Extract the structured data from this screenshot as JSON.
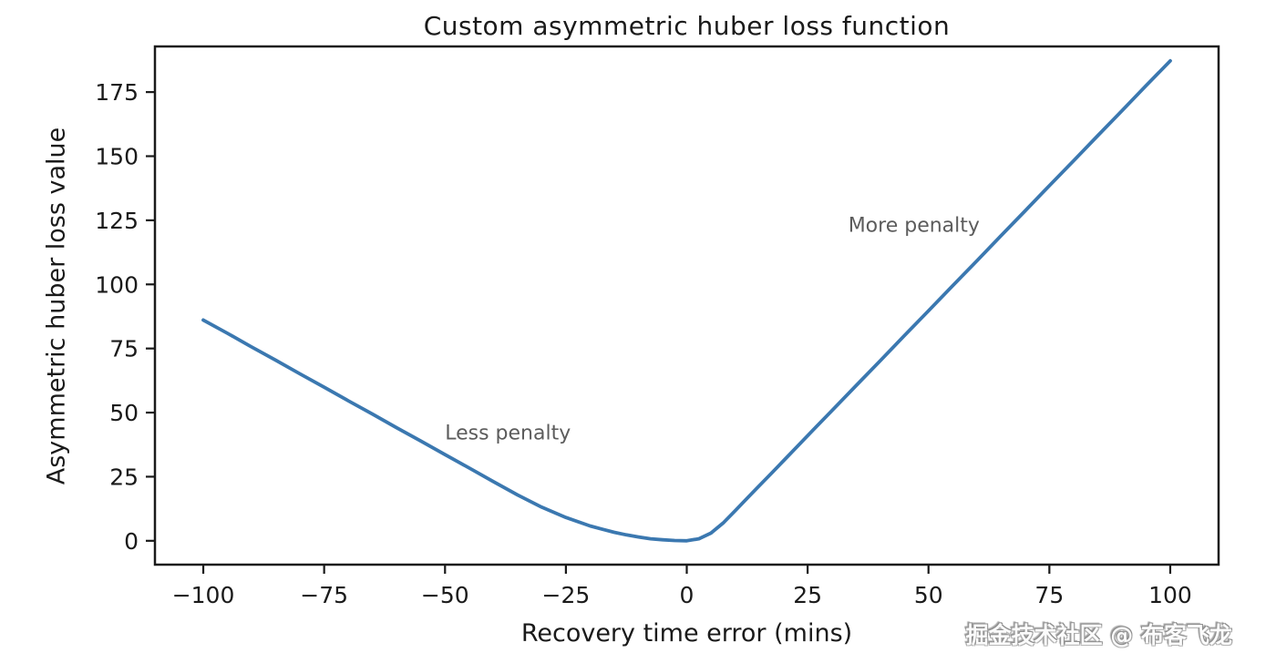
{
  "figure": {
    "watermark": "掘金技术社区 @ 布客飞龙"
  },
  "chart_data": {
    "type": "line",
    "title": "Custom asymmetric huber loss function",
    "xlabel": "Recovery time error (mins)",
    "ylabel": "Asymmetric huber loss value",
    "xlim": [
      -110,
      110
    ],
    "ylim": [
      -9.3,
      192.8
    ],
    "grid": false,
    "legend": "none",
    "axis_color": "#1a1a1a",
    "x_ticks": {
      "values": [
        -100,
        -75,
        -50,
        -25,
        0,
        25,
        50,
        75,
        100
      ],
      "labels": [
        "−100",
        "−75",
        "−50",
        "−25",
        "0",
        "25",
        "50",
        "75",
        "100"
      ]
    },
    "y_ticks": {
      "values": [
        0,
        25,
        50,
        75,
        100,
        125,
        150,
        175
      ],
      "labels": [
        "0",
        "25",
        "50",
        "75",
        "100",
        "125",
        "150",
        "175"
      ]
    },
    "series": [
      {
        "name": "asymmetric huber loss",
        "color": "#3b78b0",
        "x": [
          -100,
          -95,
          -90,
          -85,
          -80,
          -75,
          -70,
          -65,
          -60,
          -55,
          -50,
          -45,
          -40,
          -35,
          -30,
          -25,
          -20,
          -17.5,
          -15,
          -12.5,
          -10,
          -7.5,
          -5,
          -2.5,
          0,
          2.5,
          5,
          7.5,
          10,
          12.5,
          15,
          17.5,
          20,
          25,
          30,
          35,
          40,
          45,
          50,
          55,
          60,
          65,
          70,
          75,
          80,
          85,
          90,
          95,
          100
        ],
        "y": [
          86.1,
          80.9,
          75.6,
          70.4,
          65.1,
          59.9,
          54.6,
          49.4,
          44.1,
          38.9,
          33.6,
          28.4,
          23.1,
          17.9,
          13.1,
          9.1,
          5.8,
          4.5,
          3.3,
          2.3,
          1.5,
          0.8,
          0.4,
          0.1,
          0,
          0.8,
          3.0,
          6.9,
          11.7,
          16.6,
          21.5,
          26.3,
          31.2,
          41.0,
          50.7,
          60.5,
          70.2,
          80.0,
          89.7,
          99.5,
          109.2,
          119.0,
          128.7,
          138.5,
          148.2,
          158.0,
          167.7,
          177.5,
          187.2
        ]
      }
    ],
    "annotations": [
      {
        "text": "Less penalty",
        "x": -37,
        "y": 42,
        "color": "#5c5c5c"
      },
      {
        "text": "More penalty",
        "x": 47,
        "y": 123,
        "color": "#5c5c5c"
      }
    ]
  }
}
